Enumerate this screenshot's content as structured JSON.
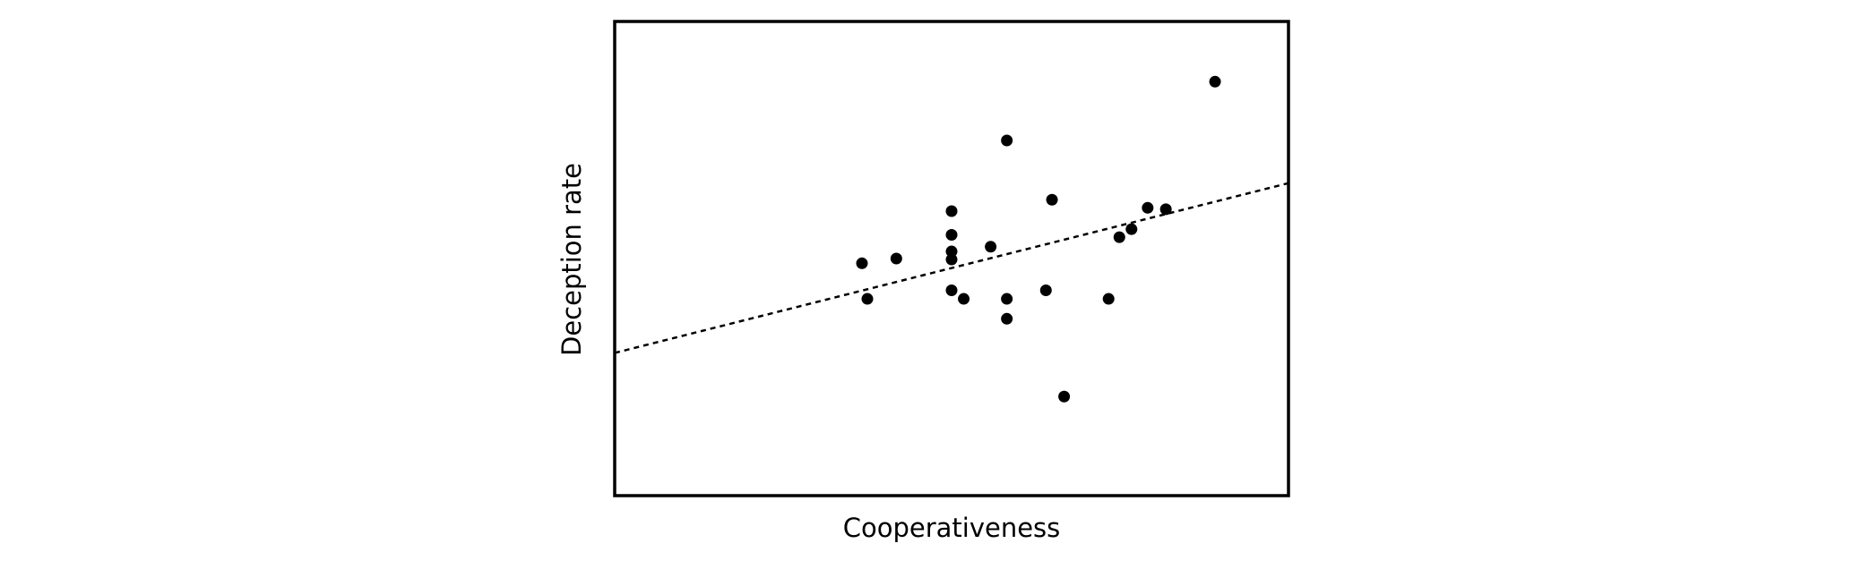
{
  "chart_data": {
    "type": "scatter",
    "x_label": "Cooperativeness",
    "y_label": "Deception rate",
    "xlim": [
      0,
      100
    ],
    "ylim": [
      0,
      100
    ],
    "color": "#000000",
    "x": [
      89.1,
      58.2,
      64.9,
      50.0,
      79.1,
      81.8,
      76.7,
      74.9,
      50.0,
      55.8,
      50.0,
      50.0,
      36.7,
      41.8,
      37.5,
      50.0,
      51.8,
      58.2,
      64.0,
      73.3,
      58.2,
      66.7
    ],
    "values": [
      87.3,
      74.9,
      62.4,
      60.0,
      60.7,
      60.4,
      56.2,
      54.5,
      55.0,
      52.5,
      51.5,
      49.8,
      49.0,
      50.0,
      41.5,
      43.3,
      41.5,
      41.5,
      43.3,
      41.5,
      37.3,
      20.9
    ],
    "trendline": {
      "x": [
        0,
        100
      ],
      "y": [
        30.1,
        65.9
      ]
    }
  }
}
